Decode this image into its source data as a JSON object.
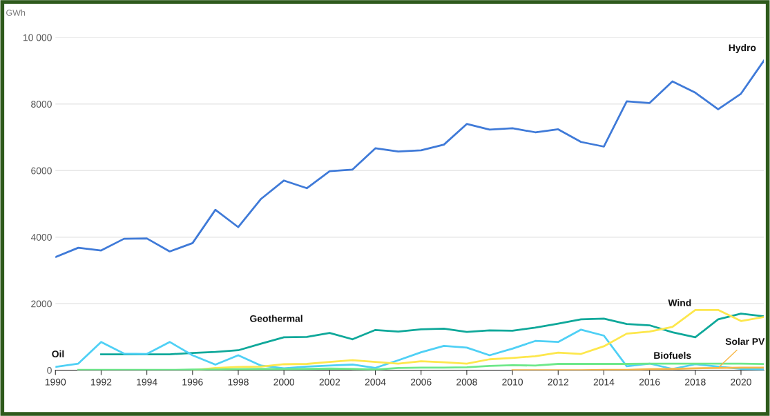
{
  "chart_data": {
    "type": "line",
    "ylabel": "GWh",
    "xlim": [
      1990,
      2021
    ],
    "xticks": [
      1990,
      1992,
      1994,
      1996,
      1998,
      2000,
      2002,
      2004,
      2006,
      2008,
      2010,
      2012,
      2014,
      2016,
      2018,
      2020
    ],
    "ylim": [
      0,
      10000
    ],
    "yticks": [
      0,
      2000,
      4000,
      6000,
      8000,
      {
        "value": 10000,
        "label": "10 000"
      }
    ],
    "grid": "y",
    "legend": false,
    "marker": "none",
    "line_style": "solid",
    "series": [
      {
        "name": "Hydro",
        "color": "#3f7ad8",
        "x": [
          1990,
          1991,
          1992,
          1993,
          1994,
          1995,
          1996,
          1997,
          1998,
          1999,
          2000,
          2001,
          2002,
          2003,
          2004,
          2005,
          2006,
          2007,
          2008,
          2009,
          2010,
          2011,
          2012,
          2013,
          2014,
          2015,
          2016,
          2017,
          2018,
          2019,
          2020,
          2021
        ],
        "values": [
          3400,
          3680,
          3600,
          3950,
          3960,
          3570,
          3820,
          4820,
          4300,
          5150,
          5700,
          5470,
          5980,
          6030,
          6670,
          6570,
          6610,
          6780,
          7400,
          7230,
          7270,
          7150,
          7240,
          6860,
          6720,
          8080,
          8030,
          8680,
          8340,
          7840,
          8310,
          9300
        ]
      },
      {
        "name": "Geothermal",
        "color": "#0fa89a",
        "x": [
          1992,
          1993,
          1994,
          1995,
          1996,
          1997,
          1998,
          1999,
          2000,
          2001,
          2002,
          2003,
          2004,
          2005,
          2006,
          2007,
          2008,
          2009,
          2010,
          2011,
          2012,
          2013,
          2014,
          2015,
          2016,
          2017,
          2018,
          2019,
          2020,
          2021
        ],
        "values": [
          480,
          480,
          480,
          480,
          520,
          550,
          600,
          800,
          990,
          1000,
          1120,
          930,
          1210,
          1160,
          1230,
          1250,
          1150,
          1200,
          1190,
          1280,
          1400,
          1530,
          1550,
          1390,
          1350,
          1140,
          990,
          1530,
          1700,
          1620
        ]
      },
      {
        "name": "Oil",
        "color": "#4fd0f5",
        "x": [
          1990,
          1991,
          1992,
          1993,
          1994,
          1995,
          1996,
          1997,
          1998,
          1999,
          2000,
          2001,
          2002,
          2003,
          2004,
          2005,
          2006,
          2007,
          2008,
          2009,
          2010,
          2011,
          2012,
          2013,
          2014,
          2015,
          2016,
          2017,
          2018,
          2019,
          2020,
          2021
        ],
        "values": [
          100,
          200,
          850,
          500,
          490,
          850,
          450,
          170,
          450,
          140,
          60,
          110,
          140,
          170,
          70,
          300,
          540,
          730,
          680,
          450,
          650,
          880,
          850,
          1220,
          1040,
          120,
          200,
          40,
          180,
          110,
          40,
          20
        ]
      },
      {
        "name": "Wind",
        "color": "#fde74c",
        "x": [
          1996,
          1997,
          1998,
          1999,
          2000,
          2001,
          2002,
          2003,
          2004,
          2005,
          2006,
          2007,
          2008,
          2009,
          2010,
          2011,
          2012,
          2013,
          2014,
          2015,
          2016,
          2017,
          2018,
          2019,
          2020,
          2021
        ],
        "values": [
          0,
          70,
          100,
          110,
          180,
          190,
          250,
          300,
          250,
          200,
          270,
          240,
          200,
          330,
          370,
          420,
          530,
          490,
          720,
          1100,
          1160,
          1300,
          1810,
          1810,
          1480,
          1600
        ]
      },
      {
        "name": "Biofuels",
        "color": "#6ee88a",
        "x": [
          1991,
          1992,
          1993,
          1994,
          1995,
          1996,
          1997,
          1998,
          1999,
          2000,
          2001,
          2002,
          2003,
          2004,
          2005,
          2006,
          2007,
          2008,
          2009,
          2010,
          2011,
          2012,
          2013,
          2014,
          2015,
          2016,
          2017,
          2018,
          2019,
          2020,
          2021
        ],
        "values": [
          10,
          10,
          10,
          10,
          10,
          20,
          20,
          30,
          40,
          30,
          40,
          50,
          40,
          20,
          70,
          80,
          80,
          90,
          130,
          150,
          140,
          190,
          190,
          190,
          190,
          200,
          200,
          200,
          200,
          200,
          190
        ]
      },
      {
        "name": "Solar PV",
        "color": "#f7b84a",
        "x": [
          2010,
          2011,
          2012,
          2013,
          2014,
          2015,
          2016,
          2017,
          2018,
          2019,
          2020,
          2021
        ],
        "values": [
          0,
          0,
          0,
          0,
          10,
          10,
          30,
          40,
          60,
          70,
          80,
          80
        ]
      }
    ]
  }
}
